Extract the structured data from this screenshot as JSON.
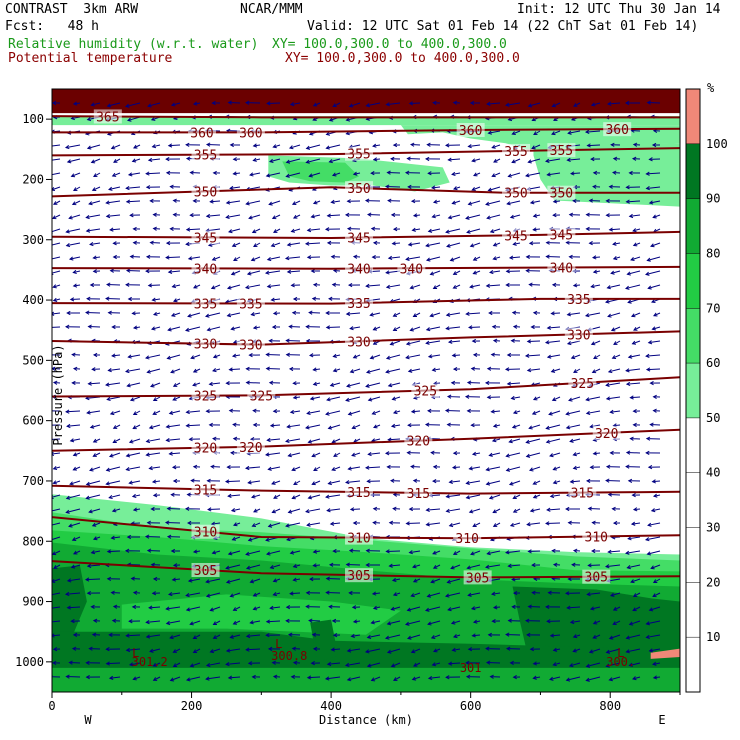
{
  "header": {
    "model": "CONTRAST  3km ARW",
    "center": "NCAR/MMM",
    "init": "Init: 12 UTC Thu 30 Jan 14",
    "fcst": "Fcst:   48 h",
    "valid": "Valid: 12 UTC Sat 01 Feb 14 (22 ChT Sat 01 Feb 14)",
    "field1": "Relative humidity (w.r.t. water)",
    "xy1": "XY= 100.0,300.0 to 400.0,300.0",
    "field2": "Potential temperature",
    "xy2": "XY= 100.0,300.0 to 400.0,300.0"
  },
  "colors": {
    "rh_50": "#77ee99",
    "rh_60": "#44dd66",
    "rh_70": "#22cc44",
    "rh_80": "#11aa33",
    "rh_90": "#007722",
    "rh_100": "#f08878",
    "theta": "#7a0000",
    "wind": "#000080",
    "top_band": "#6b0000"
  },
  "chart_data": {
    "type": "contour",
    "xlabel": "Distance (km)",
    "ylabel": "Pressure (hPa)",
    "xlim": [
      0,
      900
    ],
    "ylim": [
      1050,
      50
    ],
    "x_ticks": [
      "0",
      "200",
      "400",
      "600",
      "800"
    ],
    "x_tick_values": [
      0,
      200,
      400,
      600,
      800
    ],
    "y_ticks": [
      "100",
      "200",
      "300",
      "400",
      "500",
      "600",
      "700",
      "800",
      "900",
      "1000"
    ],
    "y_tick_values": [
      100,
      200,
      300,
      400,
      500,
      600,
      700,
      800,
      900,
      1000
    ],
    "direction_left": "W",
    "direction_right": "E",
    "colorbar": {
      "unit": "%",
      "levels": [
        "10",
        "20",
        "30",
        "40",
        "50",
        "60",
        "70",
        "80",
        "90",
        "100"
      ],
      "level_values": [
        10,
        20,
        30,
        40,
        50,
        60,
        70,
        80,
        90,
        100
      ]
    },
    "theta_lines": [
      {
        "value": 365,
        "points": [
          [
            0,
            95
          ],
          [
            300,
            97
          ],
          [
            900,
            97
          ]
        ],
        "labels": [
          {
            "text": "365",
            "x": 80
          }
        ]
      },
      {
        "value": 360,
        "points": [
          [
            0,
            122
          ],
          [
            300,
            122
          ],
          [
            600,
            118
          ],
          [
            900,
            116
          ]
        ],
        "labels": [
          {
            "text": "360",
            "x": 215
          },
          {
            "text": "360",
            "x": 285
          },
          {
            "text": "360",
            "x": 600
          },
          {
            "text": "360",
            "x": 810
          }
        ]
      },
      {
        "value": 355,
        "points": [
          [
            0,
            160
          ],
          [
            400,
            158
          ],
          [
            700,
            152
          ],
          [
            900,
            148
          ]
        ],
        "labels": [
          {
            "text": "355",
            "x": 220
          },
          {
            "text": "355",
            "x": 440
          },
          {
            "text": "355",
            "x": 665
          },
          {
            "text": "355",
            "x": 730
          }
        ]
      },
      {
        "value": 350,
        "points": [
          [
            0,
            228
          ],
          [
            400,
            213
          ],
          [
            650,
            222
          ],
          [
            900,
            222
          ]
        ],
        "labels": [
          {
            "text": "350",
            "x": 220
          },
          {
            "text": "350",
            "x": 440
          },
          {
            "text": "350",
            "x": 665
          },
          {
            "text": "350",
            "x": 730
          }
        ]
      },
      {
        "value": 345,
        "points": [
          [
            0,
            295
          ],
          [
            400,
            297
          ],
          [
            700,
            292
          ],
          [
            900,
            287
          ]
        ],
        "labels": [
          {
            "text": "345",
            "x": 220
          },
          {
            "text": "345",
            "x": 440
          },
          {
            "text": "345",
            "x": 665
          },
          {
            "text": "345",
            "x": 730
          }
        ]
      },
      {
        "value": 340,
        "points": [
          [
            0,
            347
          ],
          [
            400,
            348
          ],
          [
            900,
            345
          ]
        ],
        "labels": [
          {
            "text": "340",
            "x": 220
          },
          {
            "text": "340",
            "x": 440
          },
          {
            "text": "340",
            "x": 515
          },
          {
            "text": "340",
            "x": 730
          }
        ]
      },
      {
        "value": 335,
        "points": [
          [
            0,
            405
          ],
          [
            400,
            406
          ],
          [
            700,
            398
          ],
          [
            900,
            398
          ]
        ],
        "labels": [
          {
            "text": "335",
            "x": 220
          },
          {
            "text": "335",
            "x": 285
          },
          {
            "text": "335",
            "x": 440
          },
          {
            "text": "335",
            "x": 755
          }
        ]
      },
      {
        "value": 330,
        "points": [
          [
            0,
            468
          ],
          [
            300,
            474
          ],
          [
            600,
            462
          ],
          [
            900,
            452
          ]
        ],
        "labels": [
          {
            "text": "330",
            "x": 220
          },
          {
            "text": "330",
            "x": 285
          },
          {
            "text": "330",
            "x": 440
          },
          {
            "text": "330",
            "x": 755
          }
        ]
      },
      {
        "value": 325,
        "points": [
          [
            0,
            560
          ],
          [
            300,
            558
          ],
          [
            600,
            548
          ],
          [
            900,
            528
          ]
        ],
        "labels": [
          {
            "text": "325",
            "x": 220
          },
          {
            "text": "325",
            "x": 300
          },
          {
            "text": "325",
            "x": 535
          },
          {
            "text": "325",
            "x": 760
          }
        ]
      },
      {
        "value": 320,
        "points": [
          [
            0,
            650
          ],
          [
            300,
            643
          ],
          [
            600,
            630
          ],
          [
            900,
            615
          ]
        ],
        "labels": [
          {
            "text": "320",
            "x": 220
          },
          {
            "text": "320",
            "x": 285
          },
          {
            "text": "320",
            "x": 525
          },
          {
            "text": "320",
            "x": 795
          }
        ]
      },
      {
        "value": 315,
        "points": [
          [
            0,
            708
          ],
          [
            300,
            716
          ],
          [
            600,
            721
          ],
          [
            900,
            718
          ]
        ],
        "labels": [
          {
            "text": "315",
            "x": 220
          },
          {
            "text": "315",
            "x": 440
          },
          {
            "text": "315",
            "x": 525
          },
          {
            "text": "315",
            "x": 760
          }
        ]
      },
      {
        "value": 310,
        "points": [
          [
            0,
            760
          ],
          [
            300,
            793
          ],
          [
            600,
            795
          ],
          [
            900,
            790
          ]
        ],
        "labels": [
          {
            "text": "310",
            "x": 220
          },
          {
            "text": "310",
            "x": 440
          },
          {
            "text": "310",
            "x": 595
          },
          {
            "text": "310",
            "x": 780
          }
        ]
      },
      {
        "value": 305,
        "points": [
          [
            0,
            833
          ],
          [
            300,
            853
          ],
          [
            600,
            860
          ],
          [
            900,
            858
          ]
        ],
        "labels": [
          {
            "text": "305",
            "x": 220
          },
          {
            "text": "305",
            "x": 440
          },
          {
            "text": "305",
            "x": 610
          },
          {
            "text": "305",
            "x": 780
          }
        ]
      }
    ],
    "annotations": [
      {
        "text": "L",
        "x": 120,
        "y": 985
      },
      {
        "text": "301.2",
        "x": 140,
        "y": 1000
      },
      {
        "text": "L",
        "x": 325,
        "y": 970
      },
      {
        "text": "300.8",
        "x": 340,
        "y": 990
      },
      {
        "text": "L",
        "x": 815,
        "y": 985
      },
      {
        "text": "300.",
        "x": 815,
        "y": 1000
      },
      {
        "text": "301",
        "x": 600,
        "y": 1010
      }
    ],
    "rh_regions": [
      {
        "level": 100,
        "polygon": [
          [
            0,
            50
          ],
          [
            900,
            50
          ],
          [
            900,
            90
          ],
          [
            0,
            90
          ]
        ]
      },
      {
        "level": 50,
        "polygon": [
          [
            0,
            95
          ],
          [
            900,
            95
          ],
          [
            900,
            110
          ],
          [
            0,
            110
          ]
        ]
      },
      {
        "level": 50,
        "polygon": [
          [
            500,
            110
          ],
          [
            900,
            110
          ],
          [
            900,
            140
          ],
          [
            680,
            150
          ],
          [
            650,
            140
          ],
          [
            600,
            132
          ],
          [
            560,
            122
          ],
          [
            510,
            125
          ]
        ]
      },
      {
        "level": 50,
        "polygon": [
          [
            690,
            145
          ],
          [
            900,
            140
          ],
          [
            900,
            245
          ],
          [
            720,
            235
          ],
          [
            700,
            200
          ],
          [
            690,
            160
          ]
        ]
      },
      {
        "level": 50,
        "polygon": [
          [
            310,
            160
          ],
          [
            440,
            165
          ],
          [
            560,
            180
          ],
          [
            570,
            205
          ],
          [
            520,
            220
          ],
          [
            460,
            210
          ],
          [
            400,
            210
          ],
          [
            340,
            205
          ],
          [
            310,
            195
          ]
        ]
      },
      {
        "level": 60,
        "polygon": [
          [
            330,
            170
          ],
          [
            420,
            172
          ],
          [
            440,
            195
          ],
          [
            420,
            205
          ],
          [
            370,
            203
          ],
          [
            340,
            195
          ]
        ]
      },
      {
        "level": 50,
        "polygon": [
          [
            0,
            722
          ],
          [
            150,
            740
          ],
          [
            300,
            762
          ],
          [
            450,
            795
          ],
          [
            600,
            810
          ],
          [
            750,
            818
          ],
          [
            900,
            822
          ],
          [
            900,
            1050
          ],
          [
            0,
            1050
          ]
        ]
      },
      {
        "level": 60,
        "polygon": [
          [
            0,
            752
          ],
          [
            150,
            778
          ],
          [
            300,
            785
          ],
          [
            450,
            798
          ],
          [
            600,
            812
          ],
          [
            750,
            825
          ],
          [
            900,
            832
          ],
          [
            900,
            1050
          ],
          [
            0,
            1050
          ]
        ]
      },
      {
        "level": 70,
        "polygon": [
          [
            0,
            782
          ],
          [
            150,
            793
          ],
          [
            300,
            808
          ],
          [
            450,
            818
          ],
          [
            600,
            830
          ],
          [
            750,
            848
          ],
          [
            900,
            850
          ],
          [
            900,
            1050
          ],
          [
            0,
            1050
          ]
        ]
      },
      {
        "level": 80,
        "polygon": [
          [
            0,
            802
          ],
          [
            150,
            822
          ],
          [
            300,
            832
          ],
          [
            450,
            848
          ],
          [
            600,
            863
          ],
          [
            750,
            870
          ],
          [
            900,
            875
          ],
          [
            900,
            1050
          ],
          [
            0,
            1050
          ]
        ]
      },
      {
        "level": 70,
        "polygon": [
          [
            100,
            905
          ],
          [
            250,
            888
          ],
          [
            400,
            900
          ],
          [
            500,
            915
          ],
          [
            450,
            955
          ],
          [
            250,
            945
          ],
          [
            100,
            945
          ]
        ]
      },
      {
        "level": 90,
        "polygon": [
          [
            0,
            845
          ],
          [
            40,
            840
          ],
          [
            50,
            900
          ],
          [
            30,
            955
          ],
          [
            0,
            960
          ]
        ]
      },
      {
        "level": 90,
        "polygon": [
          [
            660,
            875
          ],
          [
            780,
            880
          ],
          [
            860,
            895
          ],
          [
            900,
            900
          ],
          [
            900,
            1050
          ],
          [
            700,
            1050
          ],
          [
            680,
            980
          ],
          [
            670,
            930
          ]
        ]
      },
      {
        "level": 90,
        "polygon": [
          [
            0,
            950
          ],
          [
            300,
            950
          ],
          [
            400,
            965
          ],
          [
            600,
            970
          ],
          [
            900,
            980
          ],
          [
            900,
            1050
          ],
          [
            0,
            1050
          ]
        ]
      },
      {
        "level": 80,
        "polygon": [
          [
            0,
            1010
          ],
          [
            900,
            1010
          ],
          [
            900,
            1050
          ],
          [
            0,
            1050
          ]
        ]
      },
      {
        "level": 90,
        "polygon": [
          [
            370,
            935
          ],
          [
            400,
            930
          ],
          [
            410,
            990
          ],
          [
            380,
            1000
          ]
        ]
      },
      {
        "level": 100,
        "polygon": [
          [
            858,
            985
          ],
          [
            900,
            978
          ],
          [
            900,
            992
          ],
          [
            858,
            995
          ]
        ]
      }
    ]
  }
}
